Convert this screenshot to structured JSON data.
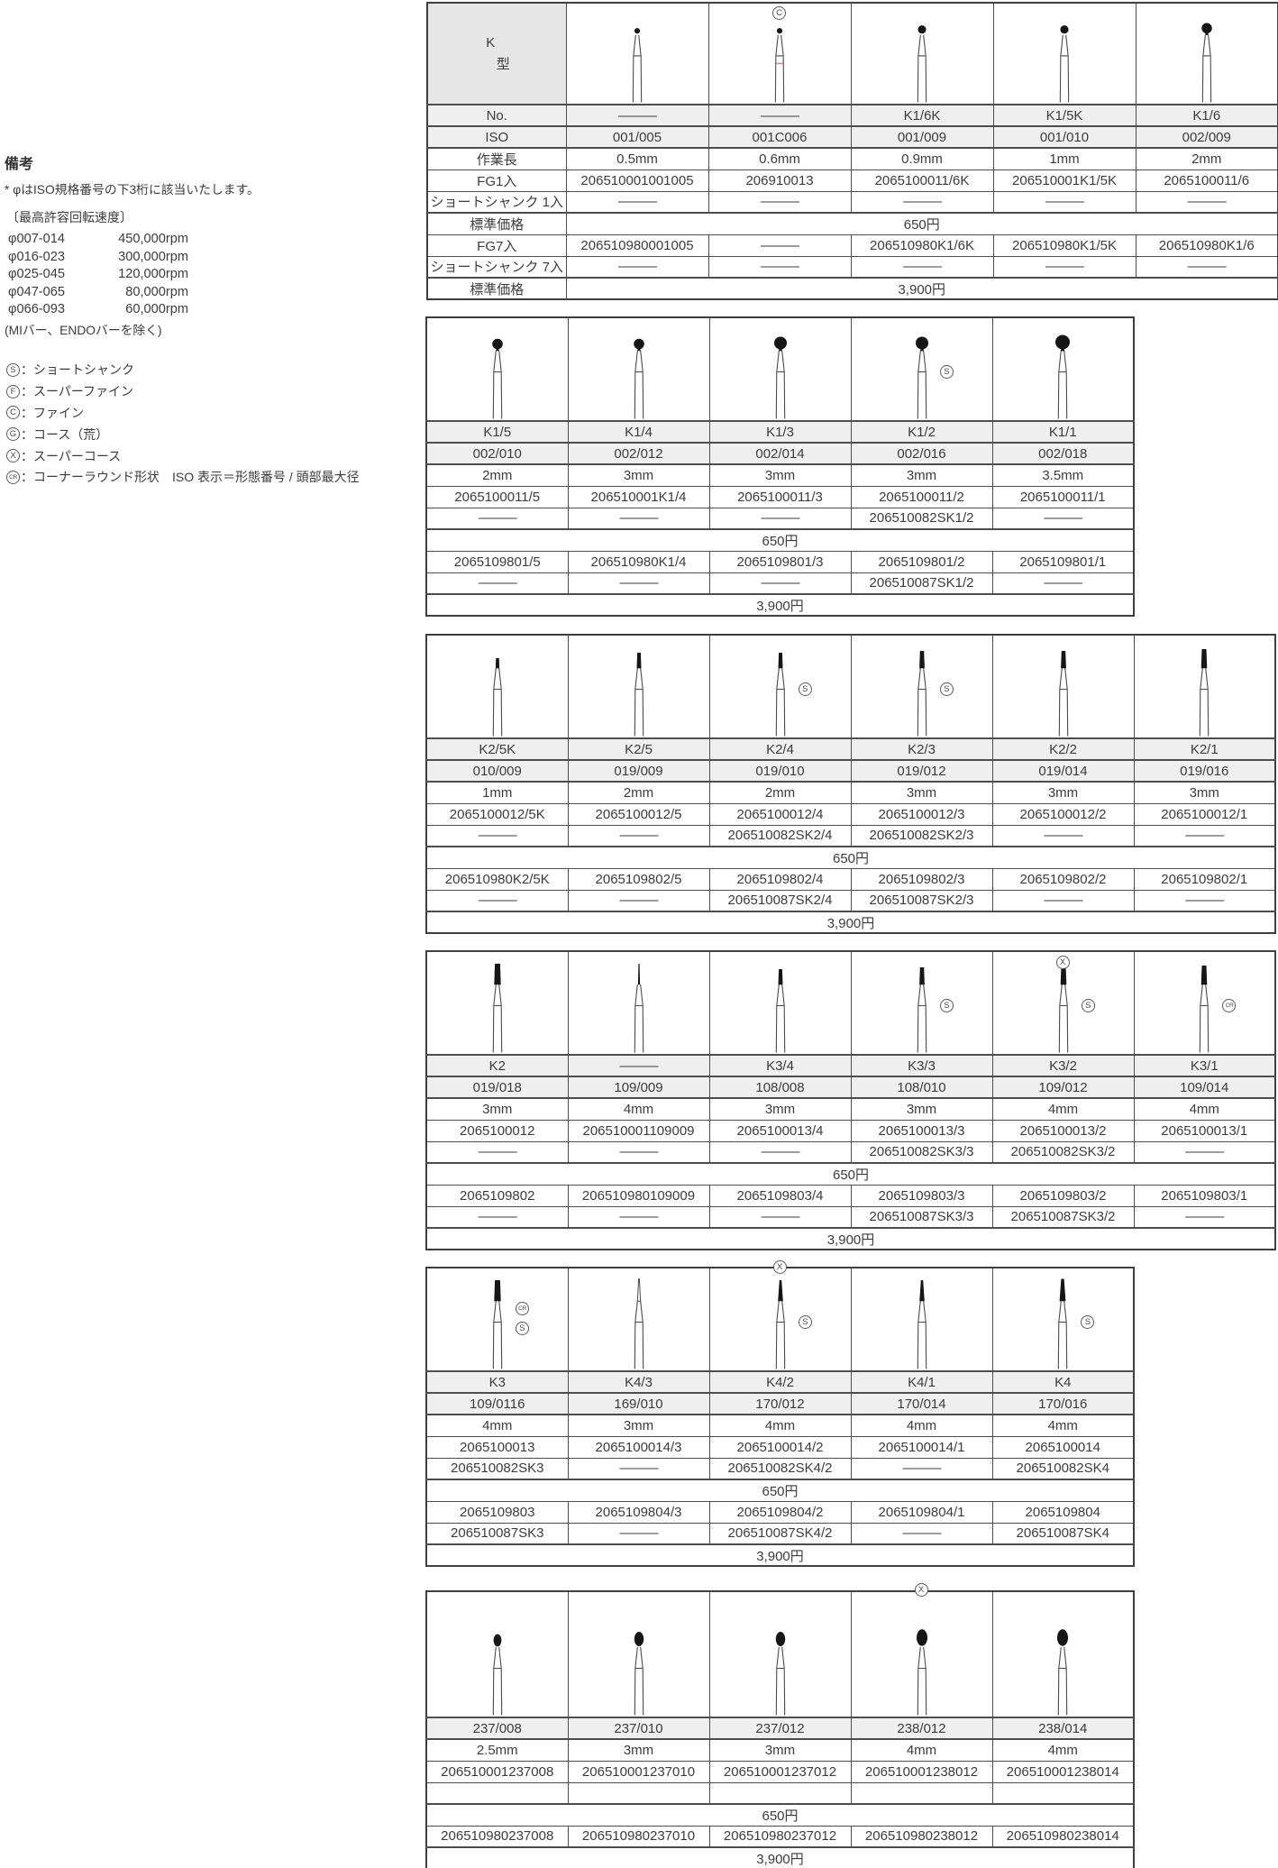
{
  "notes": {
    "title": "備考",
    "iso_note": "* φはISO規格番号の下3桁に該当いたします。",
    "speed_title": "〔最高許容回転速度〕",
    "speeds": [
      {
        "range": "φ007-014",
        "rpm": "450,000rpm"
      },
      {
        "range": "φ016-023",
        "rpm": "300,000rpm"
      },
      {
        "range": "φ025-045",
        "rpm": "120,000rpm"
      },
      {
        "range": "φ047-065",
        "rpm": "80,000rpm"
      },
      {
        "range": "φ066-093",
        "rpm": "60,000rpm"
      }
    ],
    "speed_exception": "(MIバー、ENDOバーを除く)",
    "legend_separator": "：",
    "legend": [
      {
        "symbol": "S",
        "name": "short-shank",
        "label": "ショートシャンク"
      },
      {
        "symbol": "F",
        "name": "super-fine",
        "label": "スーパーファイン"
      },
      {
        "symbol": "C",
        "name": "fine",
        "label": "ファイン"
      },
      {
        "symbol": "G",
        "name": "coarse",
        "label": "コース（荒）"
      },
      {
        "symbol": "X",
        "name": "super-coarse",
        "label": "スーパーコース"
      },
      {
        "symbol": "CR",
        "name": "corner-round",
        "label": "コーナーラウンド形状　ISO 表示＝形態番号 / 頭部最大径"
      }
    ]
  },
  "series": {
    "k": "K",
    "kata": "型"
  },
  "row_labels": {
    "no": "No.",
    "iso": "ISO",
    "len": "作業長",
    "fg1": "FG1入",
    "ss1": "ショートシャンク 1入",
    "price": "標準価格",
    "fg7": "FG7入",
    "ss7": "ショートシャンク 7入"
  },
  "tables": [
    {
      "price1": "650円",
      "price7": "3,900円",
      "rows": [
        "no",
        "iso",
        "len",
        "fg1",
        "ss1",
        "price1",
        "fg7",
        "ss7",
        "price7"
      ],
      "columns": [
        {
          "no": "———",
          "iso": "001/005",
          "len": "0.5mm",
          "fg1": "206510001001005",
          "ss1": "———",
          "fg7": "206510980001005",
          "ss7": "———",
          "bur": "ball-xs"
        },
        {
          "no": "———",
          "iso": "001C006",
          "len": "0.6mm",
          "fg1": "206910013",
          "ss1": "———",
          "fg7": "———",
          "ss7": "———",
          "bur": "ball-xs-red",
          "mark_top": "C"
        },
        {
          "no": "K1/6K",
          "iso": "001/009",
          "len": "0.9mm",
          "fg1": "2065100011/6K",
          "ss1": "———",
          "fg7": "206510980K1/6K",
          "ss7": "———",
          "bur": "ball-s"
        },
        {
          "no": "K1/5K",
          "iso": "001/010",
          "len": "1mm",
          "fg1": "206510001K1/5K",
          "ss1": "———",
          "fg7": "206510980K1/5K",
          "ss7": "———",
          "bur": "ball-s"
        },
        {
          "no": "K1/6",
          "iso": "002/009",
          "len": "2mm",
          "fg1": "2065100011/6",
          "ss1": "———",
          "fg7": "206510980K1/6",
          "ss7": "———",
          "bur": "ball-m"
        }
      ]
    },
    {
      "price1": "650円",
      "price7": "3,900円",
      "rows": [
        "no",
        "iso",
        "len",
        "fg1",
        "ss1",
        "price1",
        "fg7",
        "ss7",
        "price7"
      ],
      "columns": [
        {
          "no": "K1/5",
          "iso": "002/010",
          "len": "2mm",
          "fg1": "2065100011/5",
          "ss1": "———",
          "fg7": "2065109801/5",
          "ss7": "———",
          "bur": "ball-m"
        },
        {
          "no": "K1/4",
          "iso": "002/012",
          "len": "3mm",
          "fg1": "206510001K1/4",
          "ss1": "———",
          "fg7": "206510980K1/4",
          "ss7": "———",
          "bur": "ball-m"
        },
        {
          "no": "K1/3",
          "iso": "002/014",
          "len": "3mm",
          "fg1": "2065100011/3",
          "ss1": "———",
          "fg7": "2065109801/3",
          "ss7": "———",
          "bur": "ball-l"
        },
        {
          "no": "K1/2",
          "iso": "002/016",
          "len": "3mm",
          "fg1": "2065100011/2",
          "ss1": "206510082SK1/2",
          "fg7": "2065109801/2",
          "ss7": "206510087SK1/2",
          "bur": "ball-l",
          "marks": [
            "S"
          ]
        },
        {
          "no": "K1/1",
          "iso": "002/018",
          "len": "3.5mm",
          "fg1": "2065100011/1",
          "ss1": "———",
          "fg7": "2065109801/1",
          "ss7": "———",
          "bur": "ball-xl"
        }
      ]
    },
    {
      "price1": "650円",
      "price7": "3,900円",
      "rows": [
        "no",
        "iso",
        "len",
        "fg1",
        "ss1",
        "price1",
        "fg7",
        "ss7",
        "price7"
      ],
      "columns": [
        {
          "no": "K2/5K",
          "iso": "010/009",
          "len": "1mm",
          "fg1": "2065100012/5K",
          "ss1": "———",
          "fg7": "206510980K2/5K",
          "ss7": "———",
          "bur": "cyl-xs"
        },
        {
          "no": "K2/5",
          "iso": "019/009",
          "len": "2mm",
          "fg1": "2065100012/5",
          "ss1": "———",
          "fg7": "2065109802/5",
          "ss7": "———",
          "bur": "cyl-s"
        },
        {
          "no": "K2/4",
          "iso": "019/010",
          "len": "2mm",
          "fg1": "2065100012/4",
          "ss1": "206510082SK2/4",
          "fg7": "2065109802/4",
          "ss7": "206510087SK2/4",
          "bur": "cyl-s",
          "marks": [
            "S"
          ]
        },
        {
          "no": "K2/3",
          "iso": "019/012",
          "len": "3mm",
          "fg1": "2065100012/3",
          "ss1": "206510082SK2/3",
          "fg7": "2065109802/3",
          "ss7": "206510087SK2/3",
          "bur": "cyl-m",
          "marks": [
            "S"
          ]
        },
        {
          "no": "K2/2",
          "iso": "019/014",
          "len": "3mm",
          "fg1": "2065100012/2",
          "ss1": "———",
          "fg7": "2065109802/2",
          "ss7": "———",
          "bur": "cyl-m"
        },
        {
          "no": "K2/1",
          "iso": "019/016",
          "len": "3mm",
          "fg1": "2065100012/1",
          "ss1": "———",
          "fg7": "2065109802/1",
          "ss7": "———",
          "bur": "cyl-l"
        }
      ]
    },
    {
      "price1": "650円",
      "price7": "3,900円",
      "rows": [
        "no",
        "iso",
        "len",
        "fg1",
        "ss1",
        "price1",
        "fg7",
        "ss7",
        "price7"
      ],
      "columns": [
        {
          "no": "K2",
          "iso": "019/018",
          "len": "3mm",
          "fg1": "2065100012",
          "ss1": "———",
          "fg7": "2065109802",
          "ss7": "———",
          "bur": "cyl-xl"
        },
        {
          "no": "———",
          "iso": "109/009",
          "len": "4mm",
          "fg1": "206510001109009",
          "ss1": "———",
          "fg7": "206510980109009",
          "ss7": "———",
          "bur": "needle"
        },
        {
          "no": "K3/4",
          "iso": "108/008",
          "len": "3mm",
          "fg1": "2065100013/4",
          "ss1": "———",
          "fg7": "2065109803/4",
          "ss7": "———",
          "bur": "cyl-s"
        },
        {
          "no": "K3/3",
          "iso": "108/010",
          "len": "3mm",
          "fg1": "2065100013/3",
          "ss1": "206510082SK3/3",
          "fg7": "2065109803/3",
          "ss7": "206510087SK3/3",
          "bur": "cyl-m",
          "marks": [
            "S"
          ]
        },
        {
          "no": "K3/2",
          "iso": "109/012",
          "len": "4mm",
          "fg1": "2065100013/2",
          "ss1": "206510082SK3/2",
          "fg7": "2065109803/2",
          "ss7": "206510087SK3/2",
          "bur": "cyl-l",
          "mark_top": "X",
          "marks": [
            "S"
          ]
        },
        {
          "no": "K3/1",
          "iso": "109/014",
          "len": "4mm",
          "fg1": "2065100013/1",
          "ss1": "———",
          "fg7": "2065109803/1",
          "ss7": "———",
          "bur": "cyl-l",
          "marks": [
            "CR"
          ]
        }
      ]
    },
    {
      "price1": "650円",
      "price7": "3,900円",
      "rows": [
        "no",
        "iso",
        "len",
        "fg1",
        "ss1",
        "price1",
        "fg7",
        "ss7",
        "price7"
      ],
      "columns": [
        {
          "no": "K3",
          "iso": "109/0116",
          "len": "4mm",
          "fg1": "2065100013",
          "ss1": "206510082SK3",
          "fg7": "2065109803",
          "ss7": "206510087SK3",
          "bur": "cyl-xl",
          "marks": [
            "CR",
            "S"
          ]
        },
        {
          "no": "K4/3",
          "iso": "169/010",
          "len": "3mm",
          "fg1": "2065100014/3",
          "ss1": "———",
          "fg7": "2065109804/3",
          "ss7": "———",
          "bur": "taper-outline"
        },
        {
          "no": "K4/2",
          "iso": "170/012",
          "len": "4mm",
          "fg1": "2065100014/2",
          "ss1": "206510082SK4/2",
          "fg7": "2065109804/2",
          "ss7": "206510087SK4/2",
          "bur": "taper-m",
          "mark_top": "X",
          "marks": [
            "S"
          ]
        },
        {
          "no": "K4/1",
          "iso": "170/014",
          "len": "4mm",
          "fg1": "2065100014/1",
          "ss1": "———",
          "fg7": "2065109804/1",
          "ss7": "———",
          "bur": "taper-m"
        },
        {
          "no": "K4",
          "iso": "170/016",
          "len": "4mm",
          "fg1": "2065100014",
          "ss1": "206510082SK4",
          "fg7": "2065109804",
          "ss7": "206510087SK4",
          "bur": "taper-l",
          "marks": [
            "S"
          ]
        }
      ]
    },
    {
      "price1": "650円",
      "price7": "3,900円",
      "rows": [
        "no",
        "len",
        "fg1",
        "ss1",
        "price1",
        "fg7",
        "price7"
      ],
      "columns": [
        {
          "no": "237/008",
          "len": "2.5mm",
          "fg1": "206510001237008",
          "ss1": "",
          "fg7": "206510980237008",
          "bur": "egg-s"
        },
        {
          "no": "237/010",
          "len": "3mm",
          "fg1": "206510001237010",
          "ss1": "",
          "fg7": "206510980237010",
          "bur": "egg-m"
        },
        {
          "no": "237/012",
          "len": "3mm",
          "fg1": "206510001237012",
          "ss1": "",
          "fg7": "206510980237012",
          "bur": "egg-m"
        },
        {
          "no": "238/012",
          "len": "4mm",
          "fg1": "206510001238012",
          "ss1": "",
          "fg7": "206510980238012",
          "bur": "egg-l",
          "mark_top": "X"
        },
        {
          "no": "238/014",
          "len": "4mm",
          "fg1": "206510001238014",
          "ss1": "",
          "fg7": "206510980238014",
          "bur": "egg-l"
        }
      ]
    }
  ]
}
